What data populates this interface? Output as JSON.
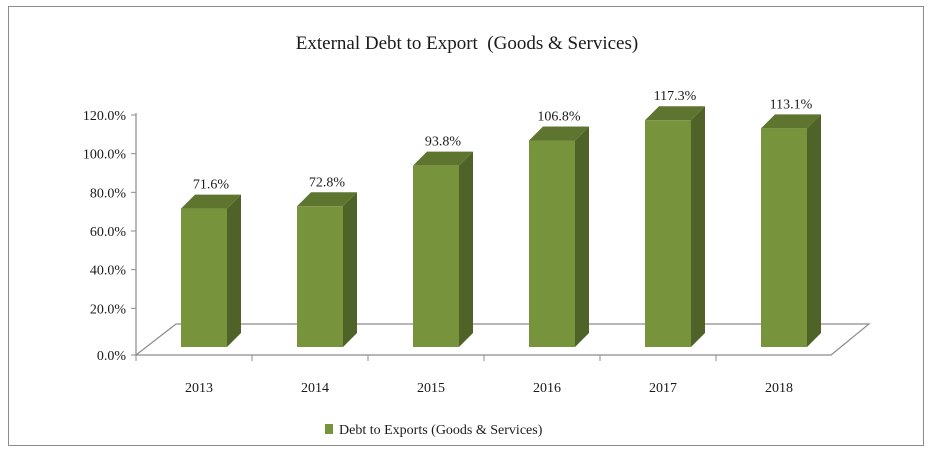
{
  "chart_data": {
    "type": "bar",
    "title": "External Debt to Export  (Goods & Services)",
    "xlabel": "",
    "ylabel": "",
    "categories": [
      "2013",
      "2014",
      "2015",
      "2016",
      "2017",
      "2018"
    ],
    "series": [
      {
        "name": "Debt to Exports (Goods & Services)",
        "values": [
          71.6,
          72.8,
          93.8,
          106.8,
          117.3,
          113.1
        ],
        "data_labels": [
          "71.6%",
          "72.8%",
          "93.8%",
          "106.8%",
          "117.3%",
          "113.1%"
        ]
      }
    ],
    "ylim": [
      0,
      120
    ],
    "yticks": [
      0,
      20,
      40,
      60,
      80,
      100,
      120
    ],
    "ytick_labels": [
      "0.0%",
      "20.0%",
      "40.0%",
      "60.0%",
      "80.0%",
      "100.0%",
      "120.0%"
    ],
    "grid": false,
    "style": "3d-column",
    "legend_position": "bottom",
    "colors": {
      "bar_front": "#77933c",
      "bar_side": "#4f6228",
      "bar_top": "#5e7530",
      "axis": "#8c8c8c"
    }
  }
}
